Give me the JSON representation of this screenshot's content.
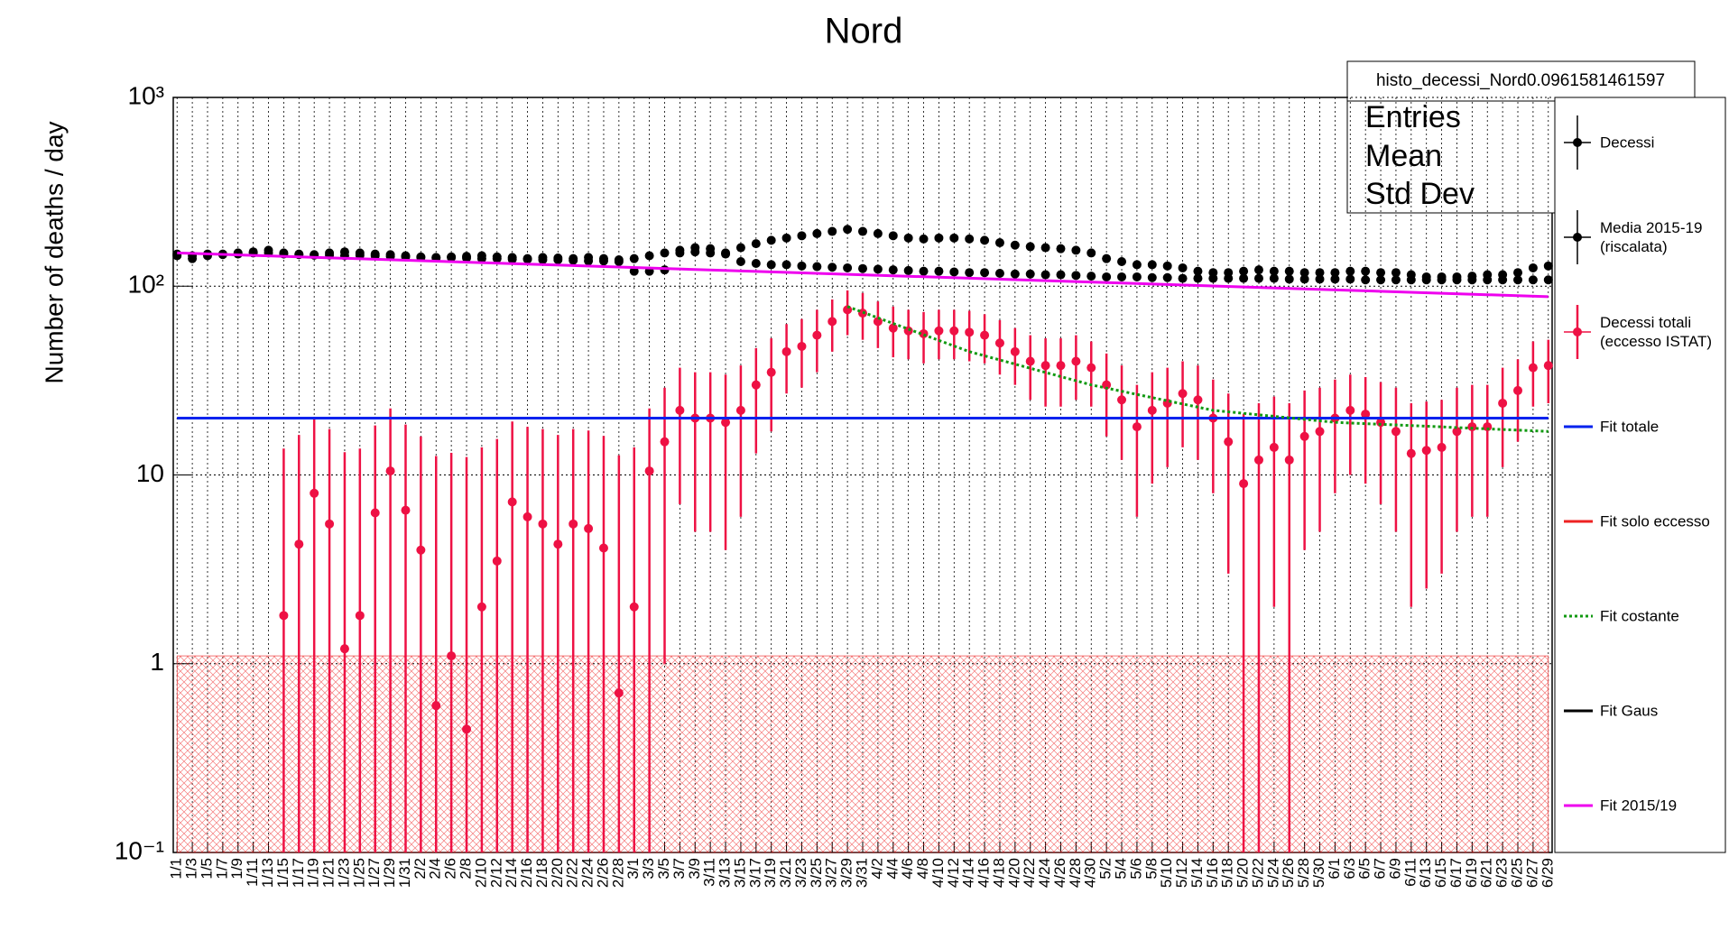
{
  "chart_data": {
    "type": "line",
    "title": "Nord",
    "ylabel": "Number of deaths / day",
    "log_y": true,
    "grid": true,
    "ylim": [
      0.1,
      1000
    ],
    "yticks": [
      {
        "value": 0.1,
        "label": "10⁻¹"
      },
      1,
      10,
      {
        "value": 100,
        "label": "10²"
      },
      {
        "value": 1000,
        "label": "10³"
      }
    ],
    "categories": [
      "1/1",
      "1/3",
      "1/5",
      "1/7",
      "1/9",
      "1/11",
      "1/13",
      "1/15",
      "1/17",
      "1/19",
      "1/21",
      "1/23",
      "1/25",
      "1/27",
      "1/29",
      "1/31",
      "2/2",
      "2/4",
      "2/6",
      "2/8",
      "2/10",
      "2/12",
      "2/14",
      "2/16",
      "2/18",
      "2/20",
      "2/22",
      "2/24",
      "2/26",
      "2/28",
      "3/1",
      "3/3",
      "3/5",
      "3/7",
      "3/9",
      "3/11",
      "3/13",
      "3/15",
      "3/17",
      "3/19",
      "3/21",
      "3/23",
      "3/25",
      "3/27",
      "3/29",
      "3/31",
      "4/2",
      "4/4",
      "4/6",
      "4/8",
      "4/10",
      "4/12",
      "4/14",
      "4/16",
      "4/18",
      "4/20",
      "4/22",
      "4/24",
      "4/26",
      "4/28",
      "4/30",
      "5/2",
      "5/4",
      "5/6",
      "5/8",
      "5/10",
      "5/12",
      "5/14",
      "5/16",
      "5/18",
      "5/20",
      "5/22",
      "5/24",
      "5/26",
      "5/28",
      "5/30",
      "6/1",
      "6/3",
      "6/5",
      "6/7",
      "6/9",
      "6/11",
      "6/13",
      "6/15",
      "6/17",
      "6/19",
      "6/21",
      "6/23",
      "6/25",
      "6/27",
      "6/29"
    ],
    "stats_box": {
      "title": "histo_decessi_Nord0.0961581461597",
      "rows": [
        "Entries",
        "Mean",
        "Std Dev"
      ]
    },
    "series": [
      {
        "name": "Decessi",
        "color": "#000000",
        "style": "points",
        "values": [
          145,
          140,
          145,
          148,
          150,
          152,
          155,
          150,
          148,
          147,
          150,
          152,
          150,
          148,
          147,
          145,
          143,
          142,
          143,
          144,
          145,
          143,
          142,
          140,
          142,
          141,
          140,
          142,
          140,
          138,
          140,
          145,
          150,
          155,
          160,
          158,
          150,
          160,
          168,
          175,
          180,
          185,
          190,
          195,
          200,
          195,
          190,
          185,
          180,
          178,
          180,
          180,
          178,
          175,
          170,
          165,
          162,
          160,
          158,
          155,
          150,
          140,
          135,
          130,
          130,
          128,
          125,
          120,
          118,
          118,
          120,
          122,
          120,
          120,
          118,
          118,
          118,
          120,
          120,
          118,
          118,
          115,
          112,
          112,
          112,
          113,
          115,
          115,
          118,
          125,
          128
        ]
      },
      {
        "name": "Media 2015-19 (riscalata)",
        "color": "#000000",
        "style": "points",
        "values": [
          148,
          145,
          148,
          147,
          148,
          150,
          150,
          148,
          147,
          146,
          146,
          145,
          146,
          145,
          144,
          143,
          142,
          141,
          142,
          141,
          140,
          140,
          139,
          139,
          138,
          138,
          137,
          136,
          136,
          135,
          120,
          120,
          122,
          150,
          152,
          150,
          148,
          135,
          132,
          130,
          130,
          128,
          127,
          126,
          125,
          124,
          123,
          122,
          121,
          120,
          120,
          119,
          118,
          118,
          117,
          116,
          116,
          115,
          115,
          114,
          113,
          112,
          112,
          112,
          111,
          111,
          110,
          110,
          110,
          110,
          110,
          110,
          110,
          109,
          109,
          109,
          109,
          109,
          108,
          108,
          108,
          108,
          108,
          108,
          108,
          108,
          108,
          108,
          108,
          108,
          108
        ]
      },
      {
        "name": "Decessi totali (eccesso ISTAT)",
        "color": "#ee1144",
        "style": "errorbars",
        "values": [
          null,
          null,
          null,
          null,
          null,
          null,
          null,
          1.8,
          4.3,
          8,
          5.5,
          1.2,
          1.8,
          6.3,
          10.5,
          6.5,
          4,
          0.6,
          1.1,
          0.45,
          2,
          3.5,
          7.2,
          6,
          5.5,
          4.3,
          5.5,
          5.2,
          4.1,
          0.7,
          2,
          10.5,
          15,
          22,
          20,
          20,
          19,
          22,
          30,
          35,
          45,
          48,
          55,
          65,
          75,
          72,
          65,
          60,
          58,
          56,
          58,
          58,
          57,
          55,
          50,
          45,
          40,
          38,
          38,
          40,
          37,
          30,
          25,
          18,
          22,
          24,
          27,
          25,
          20,
          15,
          9,
          12,
          14,
          12,
          16,
          17,
          20,
          22,
          21,
          19,
          17,
          13,
          13.5,
          14,
          17,
          18,
          18,
          24,
          28,
          37,
          38
        ],
        "errors": [
          null,
          null,
          null,
          null,
          null,
          null,
          null,
          12,
          12,
          12,
          12,
          12,
          12,
          12,
          12,
          12,
          12,
          12,
          12,
          12,
          12,
          12,
          12,
          12,
          12,
          12,
          12,
          12,
          12,
          12,
          12,
          12,
          14,
          15,
          15,
          15,
          15,
          16,
          17,
          18,
          18,
          19,
          20,
          20,
          20,
          20,
          18,
          18,
          17,
          17,
          17,
          17,
          17,
          16,
          16,
          15,
          15,
          15,
          15,
          15,
          14,
          14,
          13,
          12,
          13,
          13,
          13,
          13,
          12,
          12,
          12,
          12,
          12,
          12,
          12,
          12,
          12,
          12,
          12,
          12,
          12,
          11,
          11,
          11,
          12,
          12,
          12,
          13,
          13,
          14,
          14
        ]
      },
      {
        "name": "Fit totale",
        "color": "#0022ee",
        "style": "line",
        "x": [
          "1/1",
          "6/29"
        ],
        "values": [
          20,
          20
        ]
      },
      {
        "name": "Fit solo eccesso",
        "color": "#ee2222",
        "style": "band",
        "x": [
          "1/1",
          "6/29"
        ],
        "values": [
          1.1,
          1.1
        ]
      },
      {
        "name": "Fit costante",
        "color": "#119911",
        "style": "dotted",
        "x": [
          "3/29",
          "4/14",
          "4/30",
          "5/16",
          "6/1",
          "6/29"
        ],
        "values": [
          78,
          45,
          30,
          22,
          19,
          17
        ]
      },
      {
        "name": "Fit Gaus",
        "color": "#000000",
        "style": "legend-line"
      },
      {
        "name": "Fit 2015/19",
        "color": "#ee00ee",
        "style": "line",
        "x": [
          "1/1",
          "6/29"
        ],
        "values": [
          150,
          88
        ]
      }
    ]
  }
}
